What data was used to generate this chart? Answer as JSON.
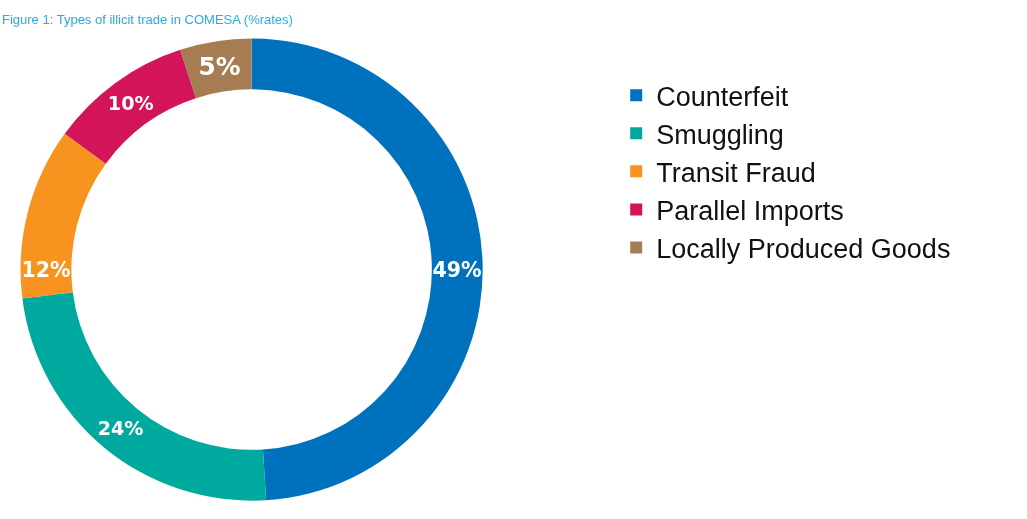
{
  "chart_data": {
    "type": "donut",
    "title": "Figure 1: Types of illicit trade in COMESA (%rates)",
    "categories": [
      "Counterfeit",
      "Smuggling",
      "Transit Fraud",
      "Parallel Imports",
      "Locally Produced Goods"
    ],
    "values": [
      49,
      24,
      12,
      10,
      5
    ],
    "colors": [
      "#0071bc",
      "#00a99d",
      "#f7931e",
      "#d4145a",
      "#a67c52"
    ],
    "value_labels": [
      "49%",
      "24%",
      "12%",
      "10%",
      "5%"
    ],
    "legend": "right"
  }
}
